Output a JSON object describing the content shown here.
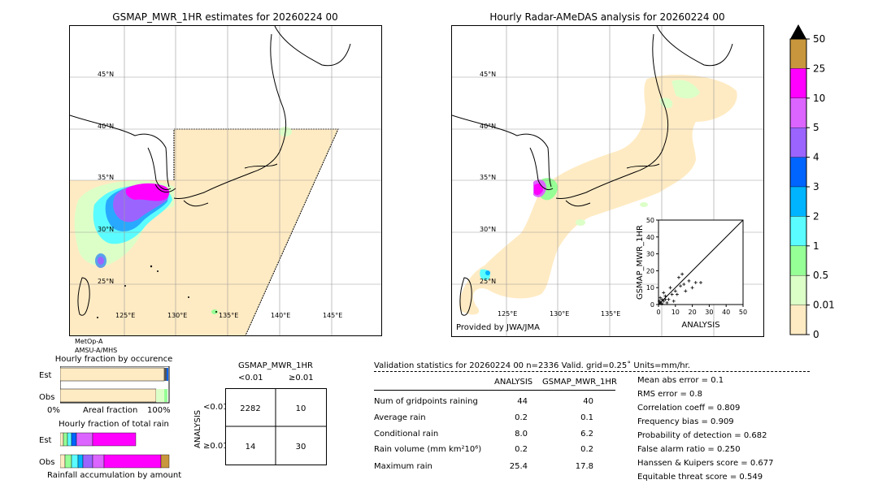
{
  "maps": {
    "left_title": "GSMAP_MWR_1HR estimates for 20260224 00",
    "right_title": "Hourly Radar-AMeDAS analysis for 20260224 00",
    "lat_labels": [
      "45°N",
      "40°N",
      "35°N",
      "30°N",
      "25°N"
    ],
    "lon_labels": [
      "125°E",
      "130°E",
      "135°E",
      "140°E",
      "145°E"
    ],
    "sat_line1": "MetOp-A",
    "sat_line2": "AMSU-A/MHS",
    "provider": "Provided by JWA/JMA"
  },
  "colorbar": {
    "labels": [
      "50",
      "25",
      "10",
      "5",
      "4",
      "3",
      "2",
      "1",
      "0.5",
      "0.01",
      "0"
    ],
    "colors": [
      "#c8963c",
      "#ff00ff",
      "#dc64ff",
      "#9b64ff",
      "#0064ff",
      "#00b4ff",
      "#5afcff",
      "#96ff96",
      "#dcffc8",
      "#ffebc3"
    ],
    "over_color": "#000000"
  },
  "fraction": {
    "title_occ": "Hourly fraction by occurence",
    "title_total": "Hourly fraction of total rain",
    "est_label": "Est",
    "obs_label": "Obs",
    "axis_left": "0%",
    "axis_mid": "Areal fraction",
    "axis_right": "100%",
    "footer": "Rainfall accumulation by amount"
  },
  "contingency": {
    "title": "GSMAP_MWR_1HR",
    "col1": "<0.01",
    "col2": "≥0.01",
    "row1": "<0.01",
    "row2": "≥0.01",
    "ylabel": "ANALYSIS",
    "cells": [
      "2282",
      "10",
      "14",
      "30"
    ]
  },
  "validation": {
    "header": "Validation statistics for 20260224 00  n=2336 Valid. grid=0.25˚ Units=mm/hr.",
    "col_analysis": "ANALYSIS",
    "col_gsmap": "GSMAP_MWR_1HR",
    "rows": [
      {
        "label": "Num of gridpoints raining",
        "analysis": "44",
        "gsmap": "40"
      },
      {
        "label": "Average rain",
        "analysis": "0.2",
        "gsmap": "0.1"
      },
      {
        "label": "Conditional rain",
        "analysis": "8.0",
        "gsmap": "6.2"
      },
      {
        "label": "Rain volume (mm km²10⁶)",
        "analysis": "0.2",
        "gsmap": "0.2"
      },
      {
        "label": "Maximum rain",
        "analysis": "25.4",
        "gsmap": "17.8"
      }
    ],
    "scores": [
      "Mean abs error =    0.1",
      "RMS error =    0.8",
      "Correlation coeff =  0.809",
      "Frequency bias =  0.909",
      "Probability of detection =  0.682",
      "False alarm ratio =  0.250",
      "Hanssen & Kuipers score =  0.677",
      "Equitable threat score =  0.549"
    ]
  },
  "chart_data": {
    "type": "scatter",
    "xlabel": "ANALYSIS",
    "ylabel": "GSMAP_MWR_1HR",
    "xlim": [
      0,
      50
    ],
    "ylim": [
      0,
      50
    ],
    "ticks": [
      "0",
      "10",
      "20",
      "30",
      "40",
      "50"
    ],
    "points": [
      [
        1,
        1
      ],
      [
        2,
        3
      ],
      [
        3,
        2
      ],
      [
        4,
        5
      ],
      [
        1,
        4
      ],
      [
        5,
        1
      ],
      [
        6,
        3
      ],
      [
        8,
        6
      ],
      [
        10,
        8
      ],
      [
        12,
        16
      ],
      [
        15,
        12
      ],
      [
        18,
        14
      ],
      [
        22,
        13
      ],
      [
        25,
        13
      ],
      [
        20,
        10
      ],
      [
        14,
        18
      ],
      [
        11,
        6
      ],
      [
        9,
        2
      ],
      [
        7,
        10
      ],
      [
        3,
        7
      ],
      [
        2,
        0.5
      ],
      [
        0.5,
        2
      ],
      [
        13,
        11
      ],
      [
        16,
        8
      ],
      [
        4,
        3
      ]
    ]
  }
}
